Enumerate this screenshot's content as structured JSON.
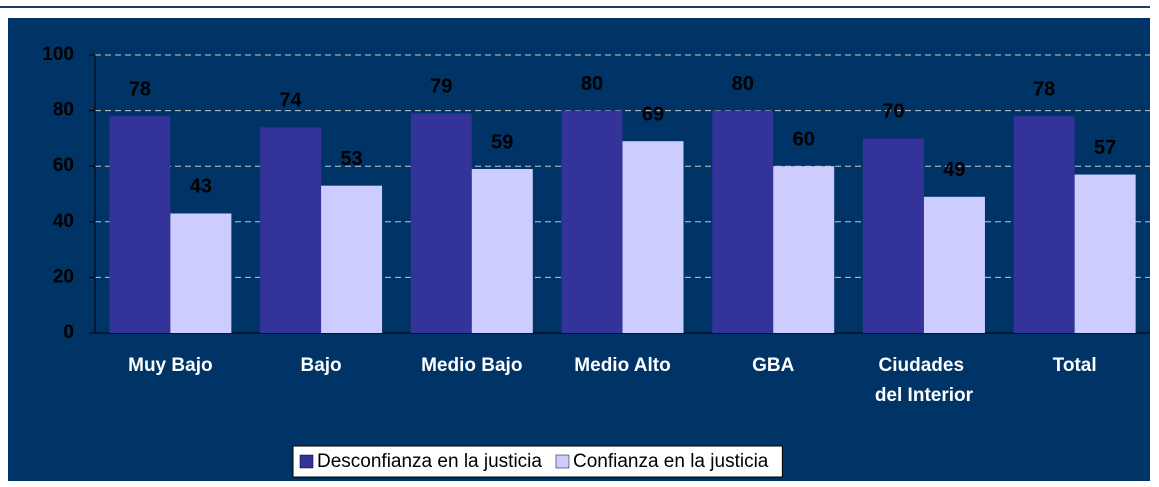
{
  "chart_data": {
    "type": "bar",
    "categories": [
      "Muy Bajo",
      "Bajo",
      "Medio Bajo",
      "Medio Alto",
      "GBA",
      "Ciudades del Interior",
      "Total"
    ],
    "series": [
      {
        "name": "Desconfianza en la justicia",
        "color": "#333399",
        "values": [
          78,
          74,
          79,
          80,
          80,
          70,
          78
        ]
      },
      {
        "name": "Confianza en la justicia",
        "color": "#ccccff",
        "values": [
          43,
          53,
          59,
          69,
          60,
          49,
          57
        ]
      }
    ],
    "ylim": [
      0,
      100
    ],
    "yticks": [
      0,
      20,
      40,
      60,
      80,
      100
    ],
    "grid": true,
    "legend": "bottom"
  }
}
